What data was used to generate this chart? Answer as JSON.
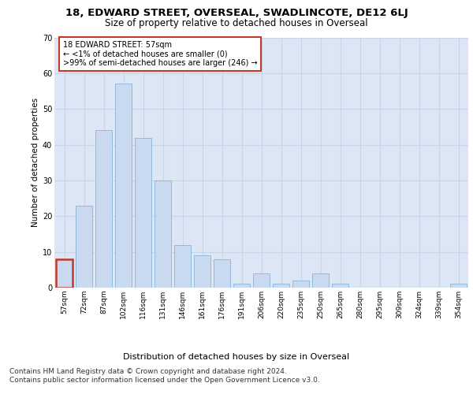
{
  "title1": "18, EDWARD STREET, OVERSEAL, SWADLINCOTE, DE12 6LJ",
  "title2": "Size of property relative to detached houses in Overseal",
  "xlabel": "Distribution of detached houses by size in Overseal",
  "ylabel": "Number of detached properties",
  "bin_labels": [
    "57sqm",
    "72sqm",
    "87sqm",
    "102sqm",
    "116sqm",
    "131sqm",
    "146sqm",
    "161sqm",
    "176sqm",
    "191sqm",
    "206sqm",
    "220sqm",
    "235sqm",
    "250sqm",
    "265sqm",
    "280sqm",
    "295sqm",
    "309sqm",
    "324sqm",
    "339sqm",
    "354sqm"
  ],
  "bar_heights": [
    8,
    23,
    44,
    57,
    42,
    30,
    12,
    9,
    8,
    1,
    4,
    1,
    2,
    4,
    1,
    0,
    0,
    0,
    0,
    0,
    1
  ],
  "bar_color": "#c9d9f0",
  "bar_edgecolor": "#8ab4d8",
  "highlight_bar_index": 0,
  "highlight_bar_edgecolor": "#c0392b",
  "annotation_text": "18 EDWARD STREET: 57sqm\n← <1% of detached houses are smaller (0)\n>99% of semi-detached houses are larger (246) →",
  "annotation_box_edgecolor": "#c0392b",
  "annotation_box_facecolor": "#ffffff",
  "ylim": [
    0,
    70
  ],
  "yticks": [
    0,
    10,
    20,
    30,
    40,
    50,
    60,
    70
  ],
  "grid_color": "#c8d4e8",
  "background_color": "#dce6f5",
  "footer_text": "Contains HM Land Registry data © Crown copyright and database right 2024.\nContains public sector information licensed under the Open Government Licence v3.0.",
  "title1_fontsize": 9.5,
  "title2_fontsize": 8.5,
  "xlabel_fontsize": 8,
  "ylabel_fontsize": 7.5,
  "annotation_fontsize": 7,
  "footer_fontsize": 6.5,
  "tick_fontsize": 6.5
}
